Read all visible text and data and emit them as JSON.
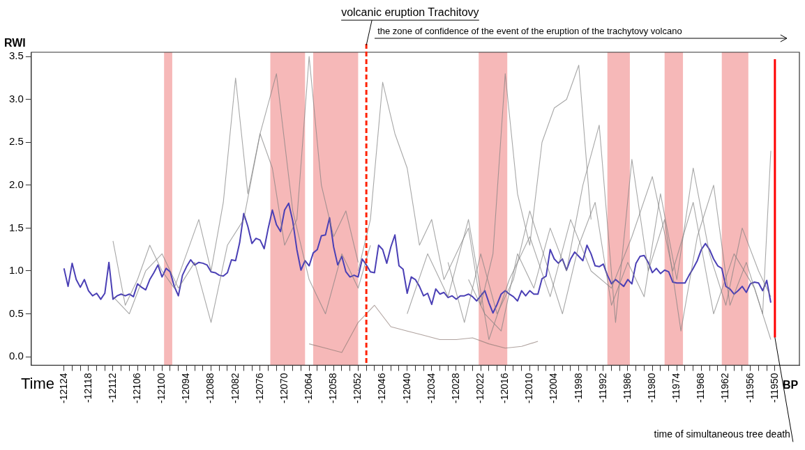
{
  "chart_data": {
    "type": "line",
    "ylabel": "RWI",
    "xlabel": "Time",
    "annotations": [
      "the zone of confidence of the event of the eruption of the trachytovy volcano",
      "BP"
    ],
    "xlim": [
      -12132,
      -11944
    ],
    "ylim": [
      -0.1,
      3.55
    ],
    "xticks": [
      -12124,
      {
        "value": -12122,
        "label": null
      },
      {
        "value": -12120,
        "label": null
      },
      -12118,
      {
        "value": -12116,
        "label": null
      },
      {
        "value": -12114,
        "label": null
      },
      -12112,
      {
        "value": -12110,
        "label": null
      },
      {
        "value": -12108,
        "label": null
      },
      -12106,
      {
        "value": -12104,
        "label": null
      },
      {
        "value": -12102,
        "label": null
      },
      -12100,
      {
        "value": -12098,
        "label": null
      },
      {
        "value": -12096,
        "label": null
      },
      -12094,
      {
        "value": -12092,
        "label": null
      },
      {
        "value": -12090,
        "label": null
      },
      -12088,
      {
        "value": -12086,
        "label": null
      },
      {
        "value": -12084,
        "label": null
      },
      -12082,
      {
        "value": -12080,
        "label": null
      },
      {
        "value": -12078,
        "label": null
      },
      -12076,
      {
        "value": -12074,
        "label": null
      },
      {
        "value": -12072,
        "label": null
      },
      -12070,
      {
        "value": -12068,
        "label": null
      },
      {
        "value": -12066,
        "label": null
      },
      -12064,
      {
        "value": -12062,
        "label": null
      },
      {
        "value": -12060,
        "label": null
      },
      -12058,
      {
        "value": -12056,
        "label": null
      },
      {
        "value": -12054,
        "label": null
      },
      -12052,
      {
        "value": -12050,
        "label": null
      },
      {
        "value": -12048,
        "label": null
      },
      -12046,
      {
        "value": -12044,
        "label": null
      },
      {
        "value": -12042,
        "label": null
      },
      -12040,
      {
        "value": -12038,
        "label": null
      },
      {
        "value": -12036,
        "label": null
      },
      -12034,
      {
        "value": -12032,
        "label": null
      },
      {
        "value": -12030,
        "label": null
      },
      -12028,
      {
        "value": -12026,
        "label": null
      },
      {
        "value": -12024,
        "label": null
      },
      -12022,
      {
        "value": -12020,
        "label": null
      },
      {
        "value": -12018,
        "label": null
      },
      -12016,
      {
        "value": -12014,
        "label": null
      },
      {
        "value": -12012,
        "label": null
      },
      -12010,
      {
        "value": -12008,
        "label": null
      },
      {
        "value": -12006,
        "label": null
      },
      -12004,
      {
        "value": -12002,
        "label": null
      },
      {
        "value": -12000,
        "label": null
      },
      -11998,
      {
        "value": -11996,
        "label": null
      },
      {
        "value": -11994,
        "label": null
      },
      -11992,
      {
        "value": -11990,
        "label": null
      },
      {
        "value": -11988,
        "label": null
      },
      -11986,
      {
        "value": -11984,
        "label": null
      },
      {
        "value": -11982,
        "label": null
      },
      -11980,
      {
        "value": -11978,
        "label": null
      },
      {
        "value": -11976,
        "label": null
      },
      -11974,
      {
        "value": -11972,
        "label": null
      },
      {
        "value": -11970,
        "label": null
      },
      -11968,
      {
        "value": -11966,
        "label": null
      },
      {
        "value": -11964,
        "label": null
      },
      -11962,
      {
        "value": -11960,
        "label": null
      },
      {
        "value": -11958,
        "label": null
      },
      -11956,
      {
        "value": -11954,
        "label": null
      },
      {
        "value": -11952,
        "label": null
      },
      -11950
    ],
    "yticks": [
      {
        "value": 0,
        "label": "0.0"
      },
      {
        "value": 0.5,
        "label": "0.5"
      },
      {
        "value": 1,
        "label": "1.0"
      },
      {
        "value": 1.5,
        "label": "1.5"
      },
      {
        "value": 2,
        "label": "2.0"
      },
      {
        "value": 2.5,
        "label": "2.5"
      },
      {
        "value": 3,
        "label": "3.0"
      },
      {
        "value": 3.5,
        "label": "3.5"
      }
    ],
    "grid": false,
    "legend": false,
    "marker": "none",
    "line_style": "solid",
    "bands": [
      {
        "axis": "x",
        "from": -12099.5,
        "to": -12097.5,
        "label": null,
        "color": "#f08c8c"
      },
      {
        "axis": "x",
        "from": -12073.5,
        "to": -12065,
        "label": null,
        "color": "#f08c8c"
      },
      {
        "axis": "x",
        "from": -12063,
        "to": -12052,
        "label": null,
        "color": "#f08c8c"
      },
      {
        "axis": "x",
        "from": -12022.5,
        "to": -12015.5,
        "label": null,
        "color": "#f08c8c"
      },
      {
        "axis": "x",
        "from": -11991,
        "to": -11985.5,
        "label": null,
        "color": "#f08c8c"
      },
      {
        "axis": "x",
        "from": -11977,
        "to": -11972.5,
        "label": null,
        "color": "#f08c8c"
      },
      {
        "axis": "x",
        "from": -11963,
        "to": -11956.5,
        "label": null,
        "color": "#f08c8c"
      }
    ],
    "ref_lines": [
      {
        "axis": "x",
        "value": -12050,
        "label": "volcanic eruption Trachitovy",
        "color": "#ff2200",
        "line_style": "dashed"
      },
      {
        "axis": "x",
        "value": -11950,
        "label": "time of simultaneous tree death",
        "color": "#ff0000",
        "line_style": "solid"
      }
    ],
    "series": [
      {
        "color": "#7f7f7f",
        "x": [
          -12112,
          -12109,
          -12106,
          -12103,
          -12100,
          -12097,
          -12094,
          -12091,
          -12088,
          -12085,
          -12082,
          -12079,
          -12076,
          -12073,
          -12070,
          -12067,
          -12064,
          -12061,
          -12058,
          -12055,
          -12052
        ],
        "values": [
          1.35,
          0.6,
          0.9,
          1.3,
          1.0,
          0.8,
          1.2,
          1.6,
          1.0,
          1.8,
          3.25,
          1.9,
          2.6,
          2.2,
          1.3,
          1.6,
          3.5,
          2.0,
          1.4,
          1.7,
          1.1
        ]
      },
      {
        "color": "#7f7f7f",
        "x": [
          -12112,
          -12108,
          -12104,
          -12100,
          -12096,
          -12092,
          -12088,
          -12084,
          -12080,
          -12076,
          -12072,
          -12068,
          -12064,
          -12060,
          -12056,
          -12052,
          -12049
        ],
        "values": [
          0.7,
          0.5,
          1.0,
          1.2,
          0.8,
          1.1,
          0.4,
          1.3,
          1.6,
          2.6,
          3.3,
          1.7,
          0.9,
          0.5,
          1.2,
          0.8,
          1.3
        ]
      },
      {
        "color": "#8c7a74",
        "x": [
          -12064,
          -12060,
          -12056,
          -12052,
          -12048,
          -12044,
          -12040,
          -12036,
          -12032,
          -12028,
          -12024,
          -12020,
          -12016,
          -12012,
          -12008
        ],
        "values": [
          0.15,
          0.1,
          0.05,
          0.4,
          0.6,
          0.35,
          0.3,
          0.25,
          0.2,
          0.2,
          0.22,
          0.15,
          0.1,
          0.12,
          0.18
        ]
      },
      {
        "color": "#7f7f7f",
        "x": [
          -12052,
          -12049,
          -12046,
          -12043,
          -12040,
          -12037,
          -12034,
          -12031,
          -12028,
          -12025,
          -12022,
          -12019,
          -12016,
          -12013,
          -12010,
          -12007,
          -12004,
          -12001,
          -11998,
          -11995
        ],
        "values": [
          1.0,
          1.6,
          3.2,
          2.6,
          2.2,
          1.3,
          1.6,
          0.9,
          1.2,
          1.5,
          0.6,
          1.2,
          3.3,
          1.9,
          1.3,
          2.5,
          2.9,
          3.0,
          3.4,
          1.6
        ]
      },
      {
        "color": "#7f7f7f",
        "x": [
          -12025,
          -12021,
          -12017,
          -12013,
          -12009,
          -12005,
          -12001,
          -11997,
          -11993,
          -11989,
          -11985,
          -11981,
          -11977,
          -11973,
          -11969,
          -11965,
          -11961,
          -11957,
          -11953,
          -11951
        ],
        "values": [
          0.9,
          0.5,
          0.3,
          1.2,
          0.8,
          1.5,
          1.0,
          2.0,
          2.7,
          0.4,
          2.3,
          1.0,
          1.6,
          0.3,
          1.4,
          2.0,
          0.6,
          1.1,
          0.5,
          2.4
        ]
      },
      {
        "color": "#7f7f7f",
        "x": [
          -12040,
          -12035,
          -12030,
          -12025,
          -12020,
          -12015,
          -12010,
          -12005,
          -12000,
          -11995,
          -11990,
          -11985,
          -11980,
          -11975,
          -11970,
          -11965,
          -11960,
          -11955,
          -11951
        ],
        "values": [
          0.5,
          1.2,
          0.7,
          1.6,
          0.2,
          0.9,
          1.4,
          0.7,
          1.6,
          1.0,
          0.8,
          1.4,
          2.1,
          1.0,
          1.8,
          0.5,
          1.2,
          0.8,
          0.2
        ]
      },
      {
        "color": "#7f7f7f",
        "x": [
          -12030,
          -12026,
          -12022,
          -12018,
          -12014,
          -12010,
          -12006,
          -12002,
          -11998,
          -11994,
          -11990,
          -11986,
          -11982,
          -11978,
          -11974,
          -11970,
          -11966,
          -11962,
          -11958,
          -11954,
          -11951
        ],
        "values": [
          1.1,
          0.4,
          1.2,
          0.5,
          0.9,
          1.7,
          1.1,
          0.5,
          1.3,
          1.8,
          0.6,
          1.1,
          0.7,
          1.9,
          0.9,
          2.2,
          1.2,
          0.6,
          1.5,
          1.0,
          0.7
        ]
      },
      {
        "color": "#4a3fb5",
        "x": [
          -12124,
          -12123,
          -12122,
          -12121,
          -12120,
          -12119,
          -12118,
          -12117,
          -12116,
          -12115,
          -12114,
          -12113,
          -12112,
          -12111,
          -12110,
          -12109,
          -12108,
          -12107,
          -12106,
          -12105,
          -12104,
          -12103,
          -12102,
          -12101,
          -12100,
          -12099,
          -12098,
          -12097,
          -12096,
          -12095,
          -12094,
          -12093,
          -12092,
          -12091,
          -12090,
          -12089,
          -12088,
          -12087,
          -12086,
          -12085,
          -12084,
          -12083,
          -12082,
          -12081,
          -12080,
          -12079,
          -12078,
          -12077,
          -12076,
          -12075,
          -12074,
          -12073,
          -12072,
          -12071,
          -12070,
          -12069,
          -12068,
          -12067,
          -12066,
          -12065,
          -12064,
          -12063,
          -12062,
          -12061,
          -12060,
          -12059,
          -12058,
          -12057,
          -12056,
          -12055,
          -12054,
          -12053,
          -12052,
          -12051,
          -12050,
          -12049,
          -12048,
          -12047,
          -12046,
          -12045,
          -12044,
          -12043,
          -12042,
          -12041,
          -12040,
          -12039,
          -12038,
          -12037,
          -12036,
          -12035,
          -12034,
          -12033,
          -12032,
          -12031,
          -12030,
          -12029,
          -12028,
          -12027,
          -12026,
          -12025,
          -12024,
          -12023,
          -12022,
          -12021,
          -12020,
          -12019,
          -12018,
          -12017,
          -12016,
          -12015,
          -12014,
          -12013,
          -12012,
          -12011,
          -12010,
          -12009,
          -12008,
          -12007,
          -12006,
          -12005,
          -12004,
          -12003,
          -12002,
          -12001,
          -12000,
          -11999,
          -11998,
          -11997,
          -11996,
          -11995,
          -11994,
          -11993,
          -11992,
          -11991,
          -11990,
          -11989,
          -11988,
          -11987,
          -11986,
          -11985,
          -11984,
          -11983,
          -11982,
          -11981,
          -11980,
          -11979,
          -11978,
          -11977,
          -11976,
          -11975,
          -11974,
          -11973,
          -11972,
          -11971,
          -11970,
          -11969,
          -11968,
          -11967,
          -11966,
          -11965,
          -11964,
          -11963,
          -11962,
          -11961,
          -11960,
          -11959,
          -11958,
          -11957,
          -11956,
          -11955,
          -11954,
          -11953,
          -11952,
          -11951
        ],
        "values": [
          1.03,
          0.82,
          1.09,
          0.9,
          0.81,
          0.9,
          0.77,
          0.71,
          0.74,
          0.67,
          0.74,
          1.1,
          0.67,
          0.71,
          0.73,
          0.71,
          0.73,
          0.7,
          0.85,
          0.81,
          0.78,
          0.9,
          0.98,
          1.07,
          0.93,
          1.03,
          0.99,
          0.82,
          0.71,
          0.95,
          1.05,
          1.13,
          1.07,
          1.1,
          1.09,
          1.07,
          0.99,
          0.98,
          0.95,
          0.94,
          0.98,
          1.13,
          1.12,
          1.33,
          1.67,
          1.52,
          1.32,
          1.38,
          1.36,
          1.26,
          1.5,
          1.71,
          1.54,
          1.46,
          1.71,
          1.79,
          1.58,
          1.25,
          1.01,
          1.12,
          1.06,
          1.21,
          1.25,
          1.41,
          1.42,
          1.62,
          1.28,
          1.07,
          1.17,
          0.99,
          0.93,
          0.95,
          0.93,
          1.14,
          1.07,
          0.99,
          0.98,
          1.3,
          1.25,
          1.09,
          1.28,
          1.42,
          1.06,
          1.02,
          0.74,
          0.93,
          0.9,
          0.82,
          0.71,
          0.74,
          0.61,
          0.79,
          0.73,
          0.75,
          0.69,
          0.71,
          0.67,
          0.71,
          0.71,
          0.73,
          0.7,
          0.65,
          0.71,
          0.77,
          0.63,
          0.51,
          0.61,
          0.73,
          0.77,
          0.73,
          0.7,
          0.65,
          0.77,
          0.71,
          0.77,
          0.73,
          0.73,
          0.91,
          0.94,
          1.25,
          1.14,
          1.09,
          1.14,
          1.01,
          1.14,
          1.22,
          1.17,
          1.12,
          1.3,
          1.2,
          1.06,
          1.05,
          1.08,
          0.95,
          0.85,
          0.9,
          0.86,
          0.82,
          0.9,
          0.85,
          1.09,
          1.17,
          1.18,
          1.1,
          0.98,
          1.03,
          0.97,
          1.01,
          0.99,
          0.87,
          0.86,
          0.86,
          0.86,
          0.95,
          1.03,
          1.12,
          1.25,
          1.32,
          1.25,
          1.14,
          1.06,
          1.03,
          0.82,
          0.79,
          0.73,
          0.77,
          0.82,
          0.75,
          0.85,
          0.87,
          0.86,
          0.77,
          0.89,
          0.63
        ]
      }
    ]
  }
}
